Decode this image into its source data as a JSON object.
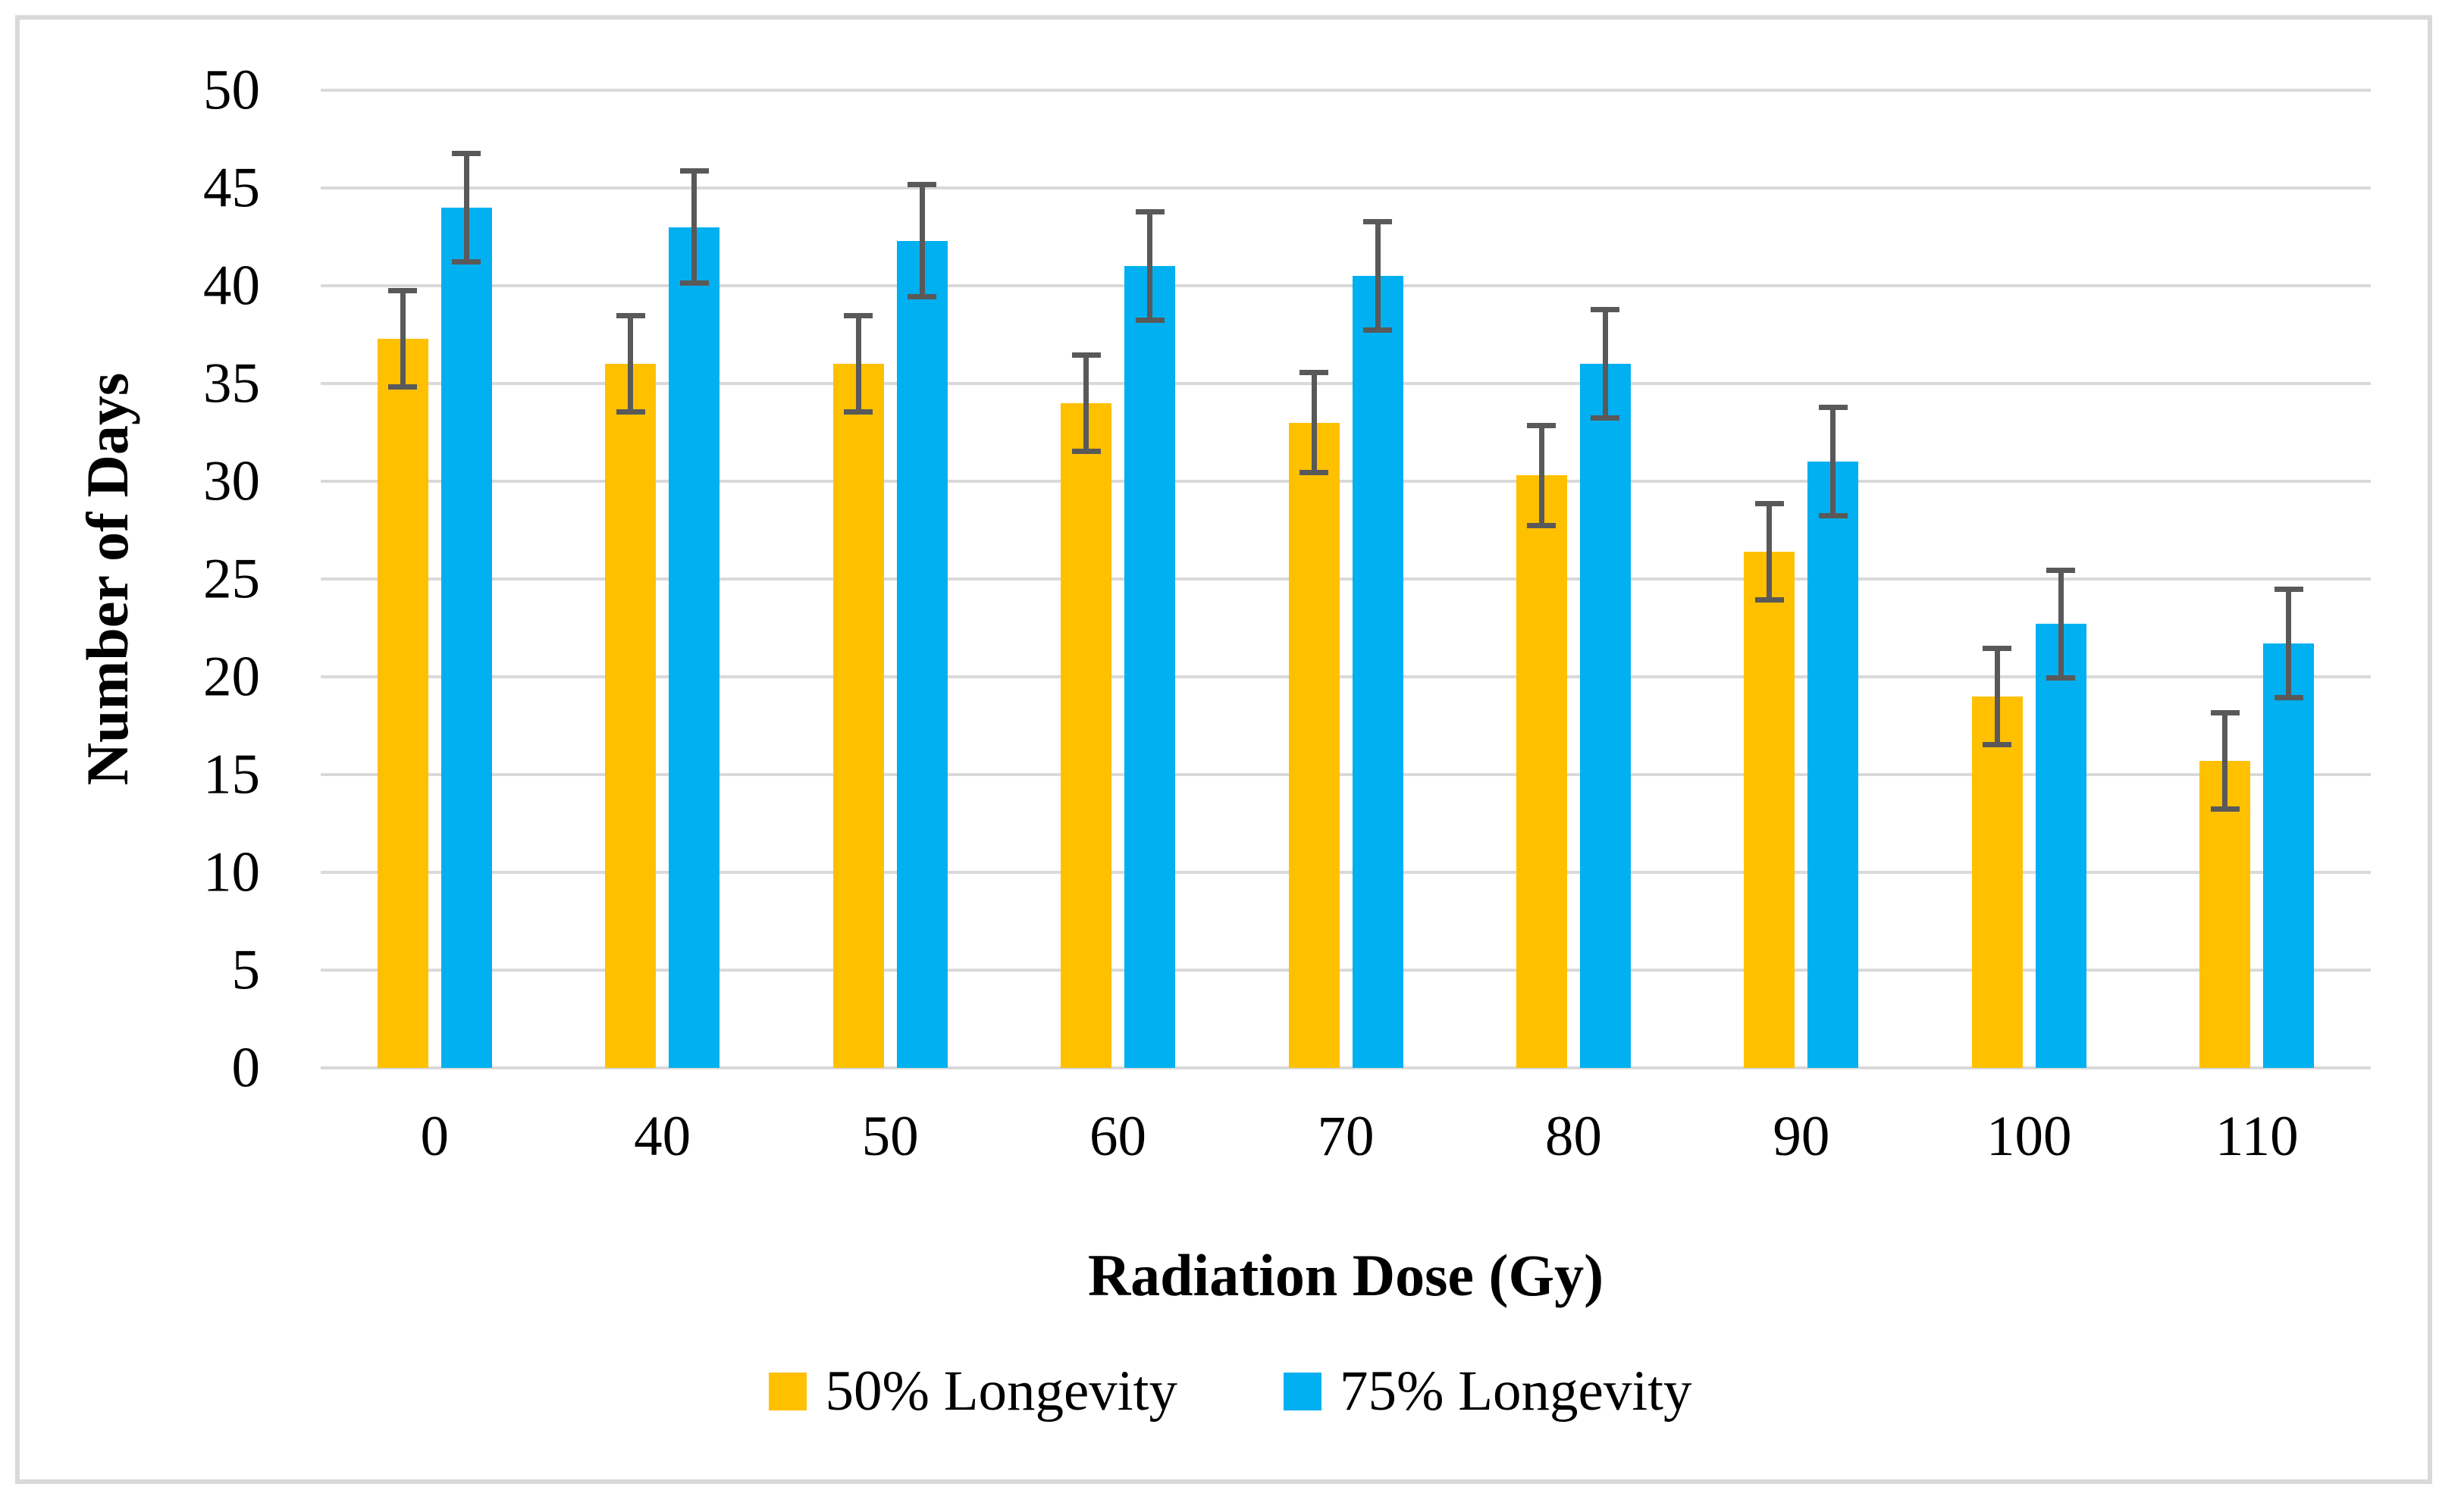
{
  "figure": {
    "background": "#ffffff",
    "frame_border_color": "#d9d9d9"
  },
  "y_axis": {
    "title": "Number of Days",
    "ticks": [
      0,
      5,
      10,
      15,
      20,
      25,
      30,
      35,
      40,
      45,
      50
    ],
    "min": 0,
    "max": 50
  },
  "x_axis": {
    "title": "Radiation Dose (Gy)",
    "categories": [
      "0",
      "40",
      "50",
      "60",
      "70",
      "80",
      "90",
      "100",
      "110"
    ]
  },
  "legend": {
    "items": [
      {
        "label": "50% Longevity",
        "color": "#FFC000"
      },
      {
        "label": "75% Longevity",
        "color": "#00B0F0"
      }
    ]
  },
  "colors": {
    "gridline": "#d9d9d9",
    "error_bar": "#595959",
    "series_50pct": "#FFC000",
    "series_75pct": "#00B0F0"
  },
  "chart_data": {
    "type": "bar",
    "title": "",
    "xlabel": "Radiation Dose (Gy)",
    "ylabel": "Number of Days",
    "categories": [
      "0",
      "40",
      "50",
      "60",
      "70",
      "80",
      "90",
      "100",
      "110"
    ],
    "series": [
      {
        "name": "50% Longevity",
        "color": "#FFC000",
        "values": [
          37.3,
          36.0,
          36.0,
          34.0,
          33.0,
          30.3,
          26.4,
          19.0,
          15.7
        ],
        "errors": [
          2.6,
          2.6,
          2.6,
          2.6,
          2.7,
          2.7,
          2.6,
          2.6,
          2.6
        ]
      },
      {
        "name": "75% Longevity",
        "color": "#00B0F0",
        "values": [
          44.0,
          43.0,
          42.3,
          41.0,
          40.5,
          36.0,
          31.0,
          22.7,
          21.7
        ],
        "errors": [
          2.9,
          3.0,
          3.0,
          2.9,
          2.9,
          2.9,
          2.9,
          2.9,
          2.9
        ]
      }
    ],
    "ylim": [
      0,
      50
    ],
    "ytick_step": 5,
    "grid": true,
    "error_bars": true,
    "legend_position": "bottom"
  }
}
